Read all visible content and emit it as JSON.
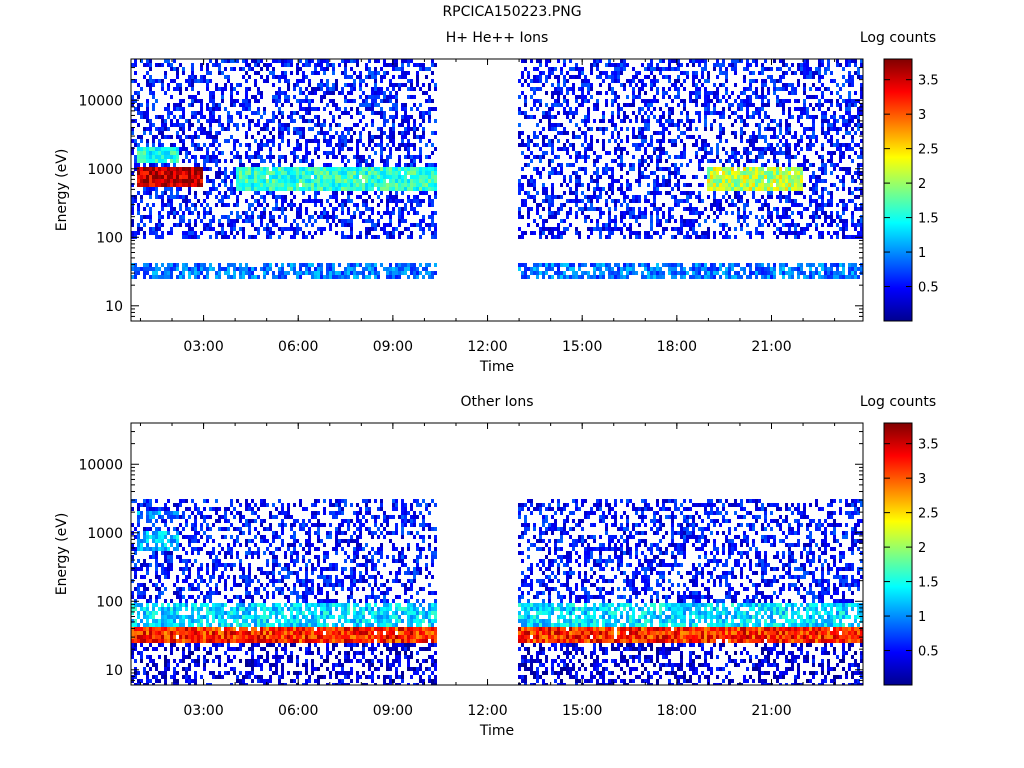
{
  "figure": {
    "title": "RPCICA150223.PNG"
  },
  "colormap": {
    "stops": [
      "#00008f",
      "#0000ff",
      "#0080ff",
      "#00ffff",
      "#80ff80",
      "#ffff00",
      "#ff8000",
      "#ff0000",
      "#800000"
    ]
  },
  "chart_data": [
    {
      "type": "heatmap",
      "title": "H+ He++ Ions",
      "xlabel": "Time",
      "ylabel": "Energy (eV)",
      "xlim_hours": [
        0.7,
        23.9
      ],
      "xticks_hours": [
        3,
        6,
        9,
        12,
        15,
        18,
        21
      ],
      "xtick_labels": [
        "03:00",
        "06:00",
        "09:00",
        "12:00",
        "15:00",
        "18:00",
        "21:00"
      ],
      "ylog": true,
      "ylim": [
        6,
        40000
      ],
      "yticks": [
        10,
        100,
        1000,
        10000
      ],
      "ytick_labels": [
        "10",
        "100",
        "1000",
        "10000"
      ],
      "data_gap_hours": [
        10.4,
        13.0
      ],
      "colorbar": {
        "label": "Log counts",
        "min": 0.0,
        "max": 3.8,
        "ticks": [
          0.5,
          1,
          1.5,
          2,
          2.5,
          3,
          3.5
        ],
        "tick_labels": [
          "0.5",
          "1",
          "1.5",
          "2",
          "2.5",
          "3",
          "3.5"
        ]
      },
      "features": [
        {
          "hours": [
            0.7,
            10.4
          ],
          "energy": [
            90,
            40000
          ],
          "level": 0.5
        },
        {
          "hours": [
            13.0,
            23.9
          ],
          "energy": [
            90,
            40000
          ],
          "level": 0.5
        },
        {
          "hours": [
            0.9,
            3.0
          ],
          "energy": [
            550,
            1000
          ],
          "level": 3.6
        },
        {
          "hours": [
            0.9,
            2.2
          ],
          "energy": [
            1200,
            2000
          ],
          "level": 1.5
        },
        {
          "hours": [
            4.0,
            10.4
          ],
          "energy": [
            500,
            1000
          ],
          "level": 1.6
        },
        {
          "hours": [
            19.0,
            22.0
          ],
          "energy": [
            500,
            1000
          ],
          "level": 2.1
        },
        {
          "hours": [
            0.7,
            10.4
          ],
          "energy": [
            25,
            40
          ],
          "level": 0.9
        },
        {
          "hours": [
            13.0,
            23.9
          ],
          "energy": [
            25,
            40
          ],
          "level": 0.9
        }
      ]
    },
    {
      "type": "heatmap",
      "title": "Other Ions",
      "xlabel": "Time",
      "ylabel": "Energy (eV)",
      "xlim_hours": [
        0.7,
        23.9
      ],
      "xticks_hours": [
        3,
        6,
        9,
        12,
        15,
        18,
        21
      ],
      "xtick_labels": [
        "03:00",
        "06:00",
        "09:00",
        "12:00",
        "15:00",
        "18:00",
        "21:00"
      ],
      "ylog": true,
      "ylim": [
        6,
        40000
      ],
      "yticks": [
        10,
        100,
        1000,
        10000
      ],
      "ytick_labels": [
        "10",
        "100",
        "1000",
        "10000"
      ],
      "data_gap_hours": [
        10.4,
        13.0
      ],
      "colorbar": {
        "label": "Log counts",
        "min": 0.0,
        "max": 3.8,
        "ticks": [
          0.5,
          1,
          1.5,
          2,
          2.5,
          3,
          3.5
        ],
        "tick_labels": [
          "0.5",
          "1",
          "1.5",
          "2",
          "2.5",
          "3",
          "3.5"
        ]
      },
      "features": [
        {
          "hours": [
            0.7,
            10.4
          ],
          "energy": [
            45,
            3000
          ],
          "level": 0.5
        },
        {
          "hours": [
            13.0,
            23.9
          ],
          "energy": [
            45,
            3000
          ],
          "level": 0.5
        },
        {
          "hours": [
            0.7,
            10.4
          ],
          "energy": [
            24,
            40
          ],
          "level": 3.2
        },
        {
          "hours": [
            13.0,
            23.9
          ],
          "energy": [
            24,
            40
          ],
          "level": 3.2
        },
        {
          "hours": [
            0.7,
            10.4
          ],
          "energy": [
            40,
            100
          ],
          "level": 1.3
        },
        {
          "hours": [
            13.0,
            23.9
          ],
          "energy": [
            40,
            100
          ],
          "level": 1.3
        },
        {
          "hours": [
            0.9,
            2.2
          ],
          "energy": [
            550,
            1000
          ],
          "level": 1.2
        },
        {
          "hours": [
            0.9,
            2.2
          ],
          "energy": [
            1500,
            2200
          ],
          "level": 1.0
        },
        {
          "hours": [
            0.7,
            10.4
          ],
          "energy": [
            6,
            24
          ],
          "level": 0.3
        },
        {
          "hours": [
            13.0,
            23.9
          ],
          "energy": [
            6,
            24
          ],
          "level": 0.3
        }
      ]
    }
  ]
}
